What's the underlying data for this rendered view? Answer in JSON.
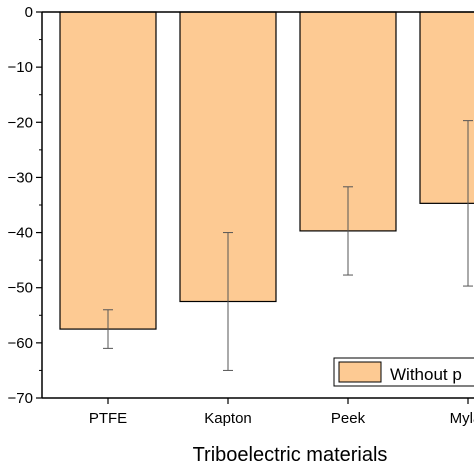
{
  "chart_data": {
    "type": "bar",
    "title": "",
    "xlabel": "Triboelectric materials",
    "ylabel": "",
    "categories": [
      "PTFE",
      "Kapton",
      "Peek",
      "Mylar"
    ],
    "series": [
      {
        "name": "Without p",
        "values": [
          -57.5,
          -52.5,
          -39.7,
          -34.7
        ],
        "errors": [
          3.5,
          12.5,
          8.0,
          15.0
        ],
        "color": "#FDCA93"
      }
    ],
    "ylim": [
      -70,
      0
    ],
    "yticks": [
      0,
      -10,
      -20,
      -30,
      -40,
      -50,
      -60,
      -70
    ],
    "grid": false,
    "legend_position": "bottom-right"
  },
  "colors": {
    "bar_fill": "#FDCA93",
    "bar_stroke": "#000000",
    "error_bar": "#555555"
  }
}
